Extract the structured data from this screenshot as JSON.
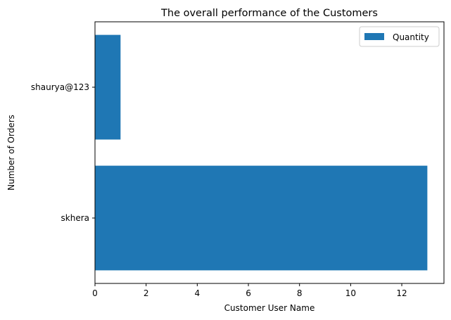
{
  "chart_data": {
    "type": "bar",
    "orientation": "horizontal",
    "title": "The overall performance of the Customers",
    "xlabel": "Customer User Name",
    "ylabel": "Number of Orders",
    "categories": [
      "skhera",
      "shaurya@123"
    ],
    "series": [
      {
        "name": "Quantity",
        "values": [
          13,
          1
        ],
        "color": "#1f77b4"
      }
    ],
    "xlim": [
      0,
      13.65
    ],
    "xticks": [
      0,
      2,
      4,
      6,
      8,
      10,
      12
    ],
    "grid": false,
    "legend": "top-right"
  }
}
